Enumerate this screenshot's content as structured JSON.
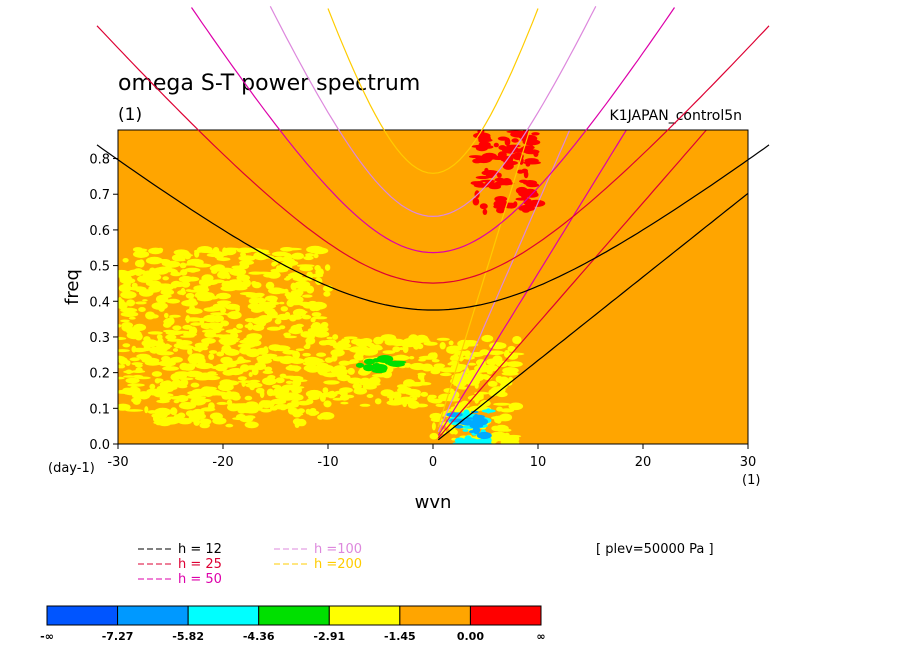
{
  "chart_data": {
    "type": "heatmap",
    "title": "omega S-T power spectrum",
    "subtitle": "(1)",
    "run_label": "K1JAPAN_control5n",
    "level_label": "[ plev=50000 Pa ]",
    "xlabel": "wvn",
    "xunit": "(1)",
    "ylabel": "freq",
    "yunit": "(day-1)",
    "xlim": [
      -30,
      30
    ],
    "ylim": [
      0.0,
      0.88
    ],
    "xticks": [
      "-30",
      "-20",
      "-10",
      "0",
      "10",
      "20",
      "30"
    ],
    "yticks": [
      "0.0",
      "0.1",
      "0.2",
      "0.3",
      "0.4",
      "0.5",
      "0.6",
      "0.7",
      "0.8"
    ],
    "background_level": "-1.45 to 0.00",
    "regions": [
      {
        "level": "-2.91 to -1.45",
        "color": "#ffff00",
        "x_range": [
          -30,
          -10
        ],
        "y_range": [
          0.05,
          0.55
        ],
        "note": "broad yellow area, left"
      },
      {
        "level": "-2.91 to -1.45",
        "color": "#ffff00",
        "x_range": [
          -10,
          0
        ],
        "y_range": [
          0.1,
          0.3
        ],
        "note": "yellow near Kelvin curves"
      },
      {
        "level": "-2.91 to -1.45",
        "color": "#ffff00",
        "x_range": [
          0,
          8
        ],
        "y_range": [
          0.0,
          0.3
        ],
        "note": "yellow column at low freq"
      },
      {
        "level": "-4.36 to -2.91",
        "color": "#00e000",
        "x_range": [
          -7,
          -3
        ],
        "y_range": [
          0.2,
          0.25
        ]
      },
      {
        "level": "-5.82 to -4.36",
        "color": "#00ffff",
        "x_range": [
          2,
          6
        ],
        "y_range": [
          0.0,
          0.1
        ]
      },
      {
        "level": "-7.27 to -5.82",
        "color": "#00aaff",
        "x_range": [
          2,
          5
        ],
        "y_range": [
          0.02,
          0.09
        ]
      },
      {
        "level": "0.00 to inf",
        "color": "#ff0000",
        "x_range": [
          4,
          10
        ],
        "y_range": [
          0.65,
          0.88
        ],
        "note": "scattered red patches"
      }
    ],
    "dispersion_curves": [
      {
        "name": "h = 12",
        "color": "#000000"
      },
      {
        "name": "h = 25",
        "color": "#dd0033"
      },
      {
        "name": "h = 50",
        "color": "#dd00aa"
      },
      {
        "name": "h =100",
        "color": "#dd88dd"
      },
      {
        "name": "h =200",
        "color": "#ffcc00"
      }
    ],
    "colorbar": {
      "colors": [
        "#0055ff",
        "#0099ff",
        "#00ffff",
        "#00e000",
        "#ffff00",
        "#ffa500",
        "#ff0000"
      ],
      "labels": [
        "-∞",
        "-7.27",
        "-5.82",
        "-4.36",
        "-2.91",
        "-1.45",
        "0.00",
        "∞"
      ]
    },
    "legend_placement": "bottom-left",
    "grid": false
  }
}
